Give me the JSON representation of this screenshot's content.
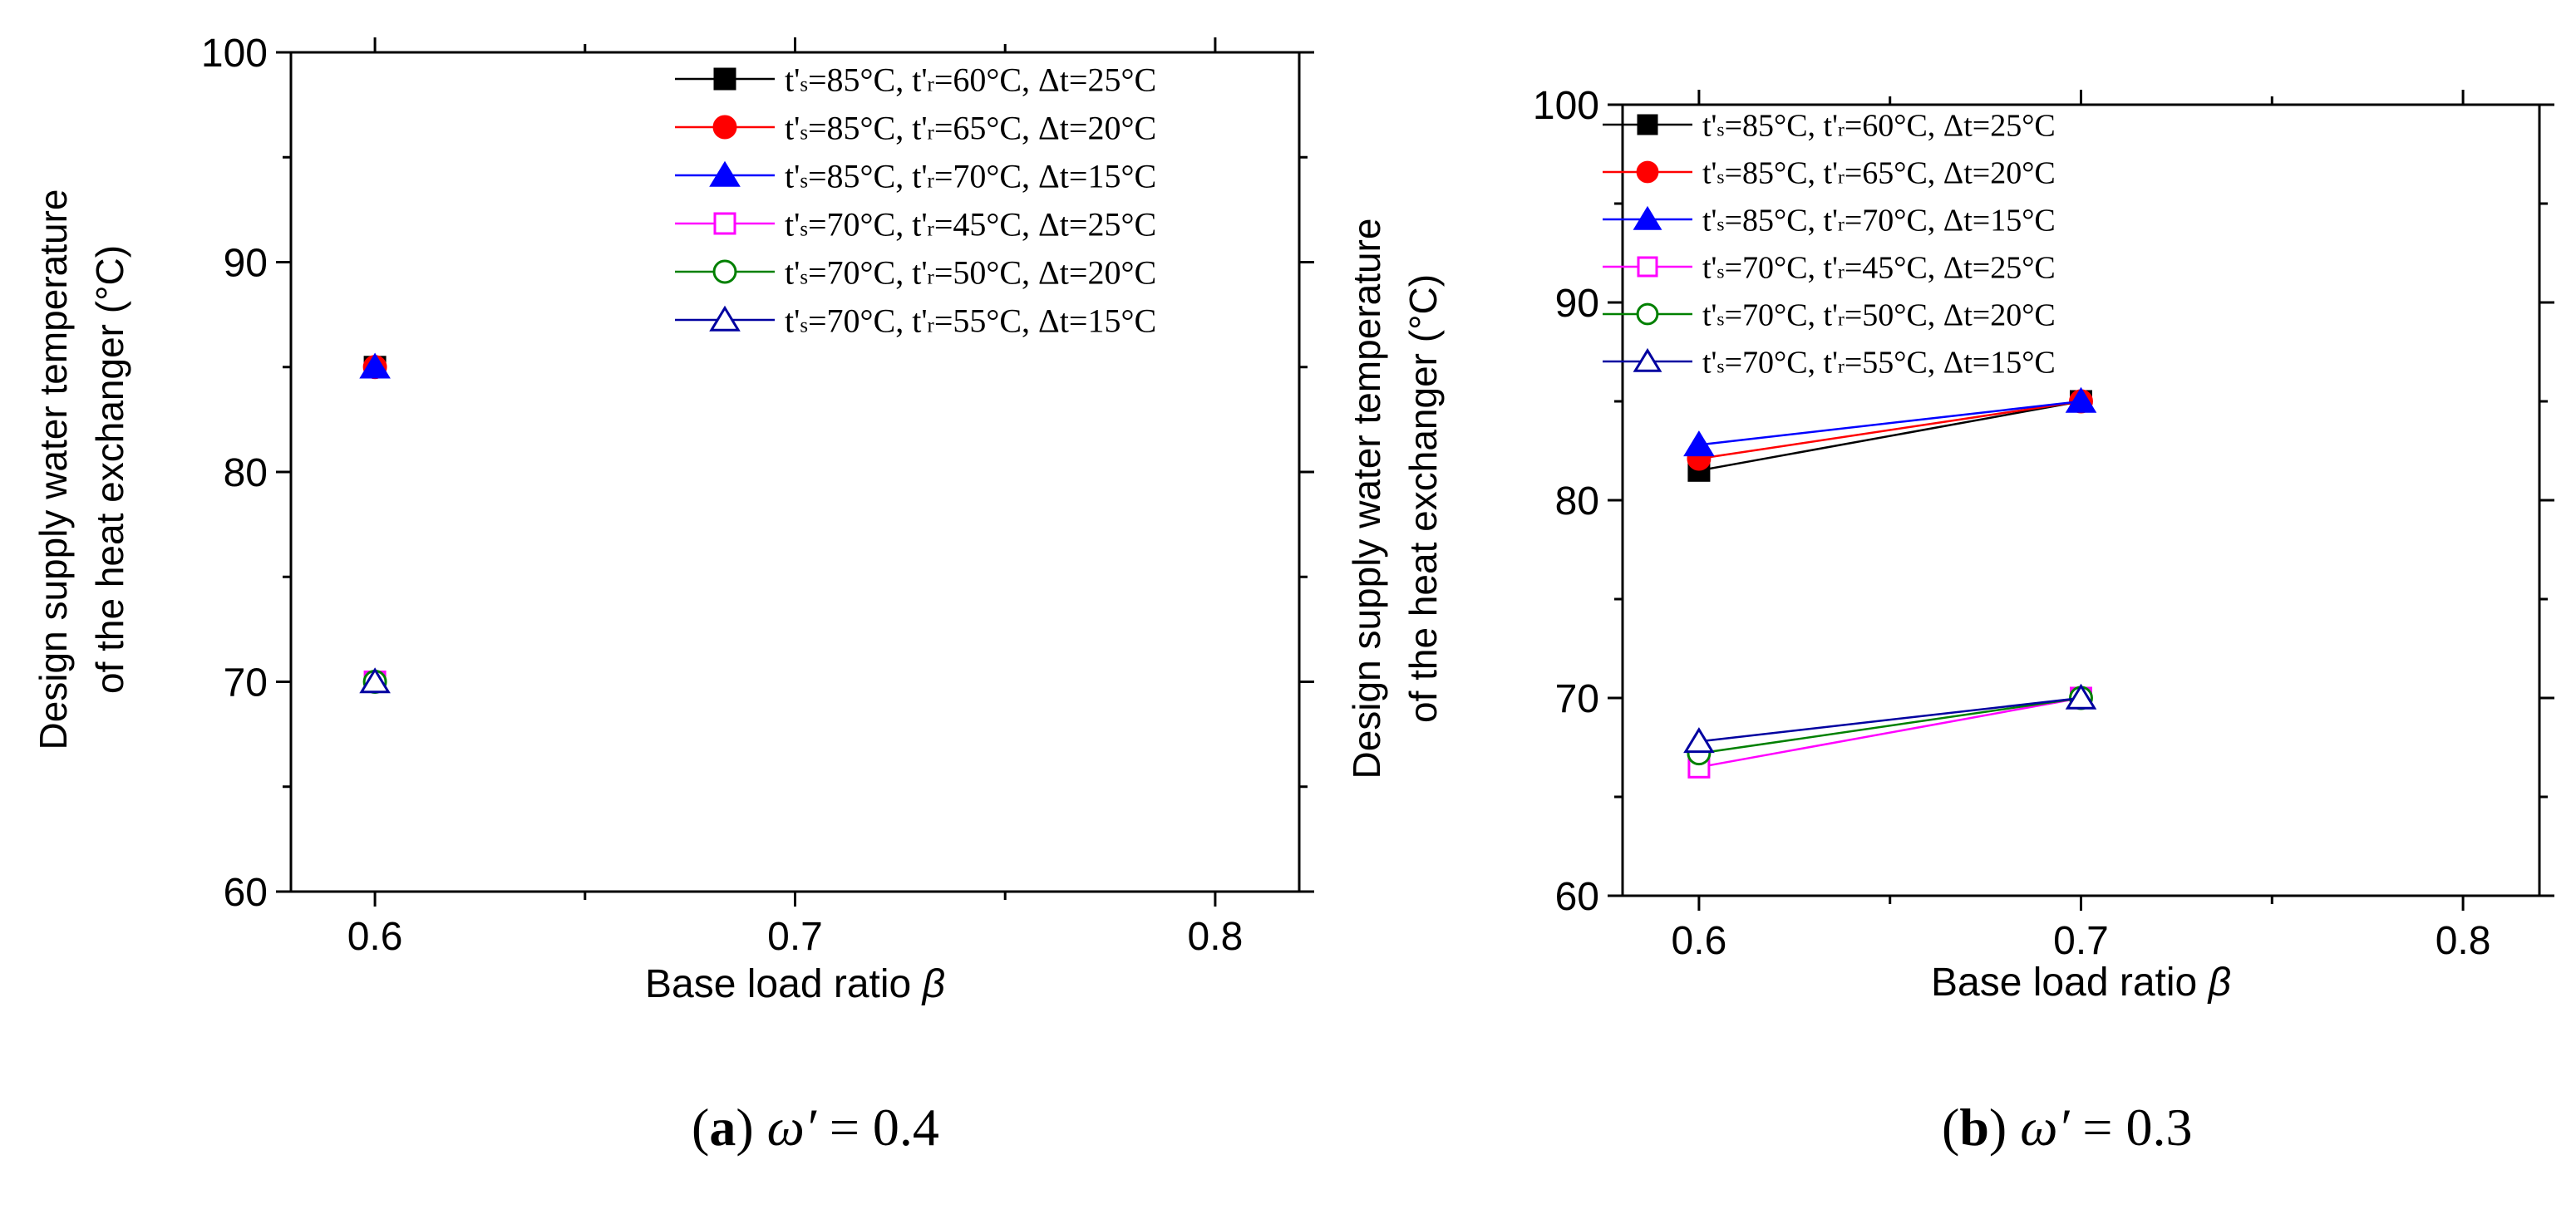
{
  "chart_data": [
    {
      "type": "line",
      "panel": "a",
      "caption": {
        "letter": "a",
        "symbol": "ω′",
        "value": "= 0.4"
      },
      "ylabel_lines": [
        "Design supply water temperature",
        "of the heat exchanger (°C)"
      ],
      "xlabel": "Base load ratio",
      "xlabel_symbol": "β",
      "xlim": [
        0.58,
        0.82
      ],
      "ylim": [
        60,
        100
      ],
      "xticks": [
        "0.6",
        "0.7",
        "0.8"
      ],
      "xtick_values": [
        0.6,
        0.7,
        0.8
      ],
      "yticks": [
        "60",
        "70",
        "80",
        "90",
        "100"
      ],
      "ytick_values": [
        60,
        70,
        80,
        90,
        100
      ],
      "legend_position": "top-right",
      "series": [
        {
          "name": "t's=85°C, t'r=60°C, Δt=25°C",
          "ts": "=85°C",
          "tr": "=60°C",
          "dt": "=25°C",
          "color": "#000000",
          "marker": "square",
          "filled": true,
          "x": [
            0.6
          ],
          "y": [
            85
          ]
        },
        {
          "name": "t's=85°C, t'r=65°C, Δt=20°C",
          "ts": "=85°C",
          "tr": "=65°C",
          "dt": "=20°C",
          "color": "#ff0000",
          "marker": "circle",
          "filled": true,
          "x": [
            0.6
          ],
          "y": [
            85
          ]
        },
        {
          "name": "t's=85°C, t'r=70°C, Δt=15°C",
          "ts": "=85°C",
          "tr": "=70°C",
          "dt": "=15°C",
          "color": "#0000ff",
          "marker": "triangle",
          "filled": true,
          "x": [
            0.6
          ],
          "y": [
            85
          ]
        },
        {
          "name": "t's=70°C, t'r=45°C, Δt=25°C",
          "ts": "=70°C",
          "tr": "=45°C",
          "dt": "=25°C",
          "color": "#ff00ff",
          "marker": "square",
          "filled": false,
          "x": [
            0.6
          ],
          "y": [
            70
          ]
        },
        {
          "name": "t's=70°C, t'r=50°C, Δt=20°C",
          "ts": "=70°C",
          "tr": "=50°C",
          "dt": "=20°C",
          "color": "#008000",
          "marker": "circle",
          "filled": false,
          "x": [
            0.6
          ],
          "y": [
            70
          ]
        },
        {
          "name": "t's=70°C, t'r=55°C, Δt=15°C",
          "ts": "=70°C",
          "tr": "=55°C",
          "dt": "=15°C",
          "color": "#0000a0",
          "marker": "triangle",
          "filled": false,
          "x": [
            0.6
          ],
          "y": [
            70
          ]
        }
      ]
    },
    {
      "type": "line",
      "panel": "b",
      "caption": {
        "letter": "b",
        "symbol": "ω′",
        "value": "= 0.3"
      },
      "ylabel_lines": [
        "Design supply water temperature",
        "of the heat exchanger (°C)"
      ],
      "xlabel": "Base load ratio",
      "xlabel_symbol": "β",
      "xlim": [
        0.58,
        0.82
      ],
      "ylim": [
        60,
        100
      ],
      "xticks": [
        "0.6",
        "0.7",
        "0.8"
      ],
      "xtick_values": [
        0.6,
        0.7,
        0.8
      ],
      "yticks": [
        "60",
        "70",
        "80",
        "90",
        "100"
      ],
      "ytick_values": [
        60,
        70,
        80,
        90,
        100
      ],
      "legend_position": "top-left",
      "series": [
        {
          "name": "t's=85°C, t'r=60°C, Δt=25°C",
          "ts": "=85°C",
          "tr": "=60°C",
          "dt": "=25°C",
          "color": "#000000",
          "marker": "square",
          "filled": true,
          "x": [
            0.6,
            0.7
          ],
          "y": [
            81.5,
            85
          ]
        },
        {
          "name": "t's=85°C, t'r=65°C, Δt=20°C",
          "ts": "=85°C",
          "tr": "=65°C",
          "dt": "=20°C",
          "color": "#ff0000",
          "marker": "circle",
          "filled": true,
          "x": [
            0.6,
            0.7
          ],
          "y": [
            82.1,
            85
          ]
        },
        {
          "name": "t's=85°C, t'r=70°C, Δt=15°C",
          "ts": "=85°C",
          "tr": "=70°C",
          "dt": "=15°C",
          "color": "#0000ff",
          "marker": "triangle",
          "filled": true,
          "x": [
            0.6,
            0.7
          ],
          "y": [
            82.8,
            85
          ]
        },
        {
          "name": "t's=70°C, t'r=45°C, Δt=25°C",
          "ts": "=70°C",
          "tr": "=45°C",
          "dt": "=25°C",
          "color": "#ff00ff",
          "marker": "square",
          "filled": false,
          "x": [
            0.6,
            0.7
          ],
          "y": [
            66.5,
            70
          ]
        },
        {
          "name": "t's=70°C, t'r=50°C, Δt=20°C",
          "ts": "=70°C",
          "tr": "=50°C",
          "dt": "=20°C",
          "color": "#008000",
          "marker": "circle",
          "filled": false,
          "x": [
            0.6,
            0.7
          ],
          "y": [
            67.2,
            70
          ]
        },
        {
          "name": "t's=70°C, t'r=55°C, Δt=15°C",
          "ts": "=70°C",
          "tr": "=55°C",
          "dt": "=15°C",
          "color": "#0000a0",
          "marker": "triangle",
          "filled": false,
          "x": [
            0.6,
            0.7
          ],
          "y": [
            67.8,
            70
          ]
        }
      ]
    }
  ]
}
